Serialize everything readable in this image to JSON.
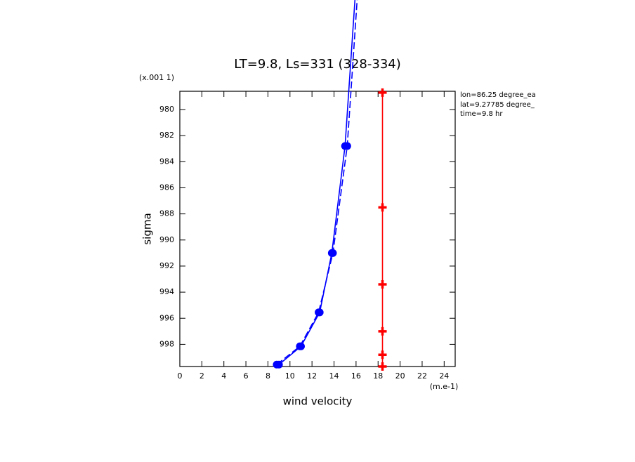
{
  "chart_data": {
    "type": "line",
    "title": "LT=9.8, Ls=331 (328-334)",
    "x_label": "wind velocity",
    "y_label": "sigma",
    "x_unit": "(m.e-1)",
    "y_unit": "(x.001 1)",
    "annotations": [
      "lon=86.25 degree_ea",
      "lat=9.27785 degree_",
      "time=9.8 hr"
    ],
    "xlim": [
      0,
      25
    ],
    "xticks": [
      0,
      2,
      4,
      6,
      8,
      10,
      12,
      14,
      16,
      18,
      20,
      22,
      24
    ],
    "ylim": [
      999.7,
      978.6
    ],
    "yticks": [
      980,
      982,
      984,
      986,
      988,
      990,
      992,
      994,
      996,
      998
    ],
    "series": [
      {
        "color": "#0000ff",
        "line_style": "solid",
        "marker": "circle",
        "x": [
          9.0,
          11.0,
          12.7,
          13.8,
          15.0,
          15.9
        ],
        "values": [
          999.55,
          998.15,
          995.55,
          991.0,
          982.8,
          971.6
        ]
      },
      {
        "color": "#0000ff",
        "line_style": "dashed",
        "marker": "circle",
        "x": [
          8.8,
          10.9,
          12.6,
          13.9,
          15.2,
          16.1
        ],
        "values": [
          999.55,
          998.15,
          995.55,
          991.0,
          982.8,
          971.6
        ]
      },
      {
        "color": "#ff0000",
        "line_style": "solid",
        "marker": "plus",
        "x": [
          18.4,
          18.4,
          18.4,
          18.4,
          18.4,
          18.4
        ],
        "values": [
          978.7,
          987.5,
          993.4,
          997.0,
          998.8,
          999.7
        ]
      }
    ]
  }
}
